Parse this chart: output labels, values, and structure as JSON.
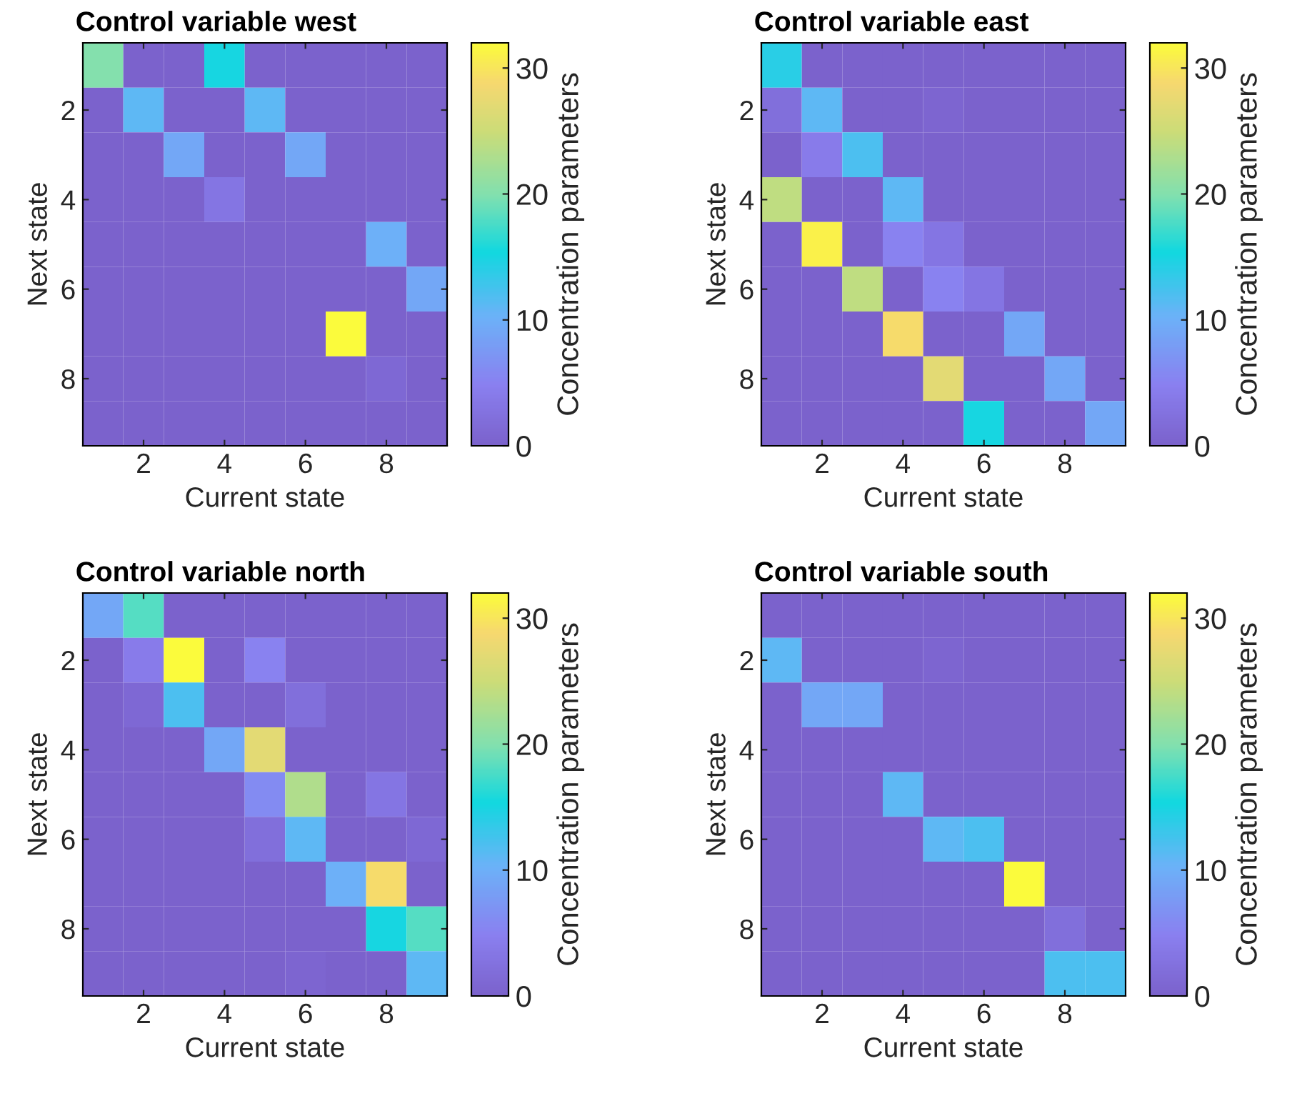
{
  "chart_data": [
    {
      "type": "heatmap",
      "title": "Control variable west",
      "xlabel": "Current state",
      "ylabel": "Next state",
      "clabel": "Concentration parameters",
      "categories": [
        null,
        "2",
        null,
        "4",
        null,
        "6",
        null,
        "8",
        null
      ],
      "y_categories": [
        null,
        "2",
        null,
        "4",
        null,
        "6",
        null,
        "8",
        null
      ],
      "cells": [
        [
          20,
          0,
          0,
          15,
          0,
          0,
          0,
          0,
          0
        ],
        [
          0,
          11,
          0,
          0,
          11,
          0,
          0,
          0,
          0
        ],
        [
          0,
          0,
          9,
          0,
          0,
          9,
          0,
          0,
          0
        ],
        [
          0,
          0,
          0,
          3,
          0,
          0,
          0,
          0,
          0
        ],
        [
          0,
          0,
          0,
          0,
          0,
          0,
          0,
          10,
          0
        ],
        [
          0,
          0,
          0,
          0,
          0,
          0,
          0,
          0,
          9
        ],
        [
          0,
          0,
          0,
          0,
          0,
          0,
          32,
          0,
          0
        ],
        [
          0,
          0,
          0,
          0,
          0,
          0,
          0,
          1,
          0
        ],
        [
          0,
          0,
          0,
          0,
          0,
          0,
          0,
          0,
          0
        ]
      ],
      "clim": [
        0,
        32
      ],
      "cticks": [
        0,
        10,
        20,
        30
      ]
    },
    {
      "type": "heatmap",
      "title": "Control variable east",
      "xlabel": "Current state",
      "ylabel": "Next state",
      "clabel": "Concentration parameters",
      "categories": [
        null,
        "2",
        null,
        "4",
        null,
        "6",
        null,
        "8",
        null
      ],
      "y_categories": [
        null,
        "2",
        null,
        "4",
        null,
        "6",
        null,
        "8",
        null
      ],
      "cells": [
        [
          14,
          0,
          0,
          0,
          0,
          0,
          0,
          0,
          0
        ],
        [
          2,
          11,
          0,
          0,
          0.5,
          0,
          0,
          0,
          0
        ],
        [
          0,
          4,
          12,
          0,
          0,
          0,
          0,
          0,
          0
        ],
        [
          24,
          0,
          0,
          11,
          0,
          0,
          0,
          0,
          0
        ],
        [
          0,
          31,
          0,
          5,
          3,
          0,
          0,
          0,
          0
        ],
        [
          0,
          0,
          24,
          0,
          5,
          3,
          0,
          0,
          0
        ],
        [
          0,
          0,
          0,
          29,
          0,
          0,
          9,
          0,
          0
        ],
        [
          0,
          0,
          0,
          0,
          27,
          0,
          0,
          9,
          0
        ],
        [
          0,
          0,
          0,
          0,
          0,
          15,
          0,
          0,
          9
        ]
      ],
      "clim": [
        0,
        32
      ],
      "cticks": [
        0,
        10,
        20,
        30
      ]
    },
    {
      "type": "heatmap",
      "title": "Control variable north",
      "xlabel": "Current state",
      "ylabel": "Next state",
      "clabel": "Concentration parameters",
      "categories": [
        null,
        "2",
        null,
        "4",
        null,
        "6",
        null,
        "8",
        null
      ],
      "y_categories": [
        null,
        "2",
        null,
        "4",
        null,
        "6",
        null,
        "8",
        null
      ],
      "cells": [
        [
          9,
          18,
          0,
          0,
          0,
          0,
          0,
          0,
          0
        ],
        [
          0,
          4,
          32,
          0,
          5,
          0,
          0,
          0,
          0
        ],
        [
          0,
          1,
          12,
          0,
          0,
          2,
          0,
          0,
          0
        ],
        [
          0,
          0,
          0,
          9,
          27,
          0,
          0,
          0,
          0
        ],
        [
          0,
          0,
          0,
          0,
          6,
          23,
          0,
          3,
          0
        ],
        [
          0,
          0,
          0,
          0,
          2,
          11,
          0,
          0,
          1
        ],
        [
          0,
          0,
          0,
          0,
          0,
          0,
          10,
          29,
          0
        ],
        [
          0,
          0,
          0,
          0,
          0,
          0,
          0,
          15,
          18
        ],
        [
          0,
          0,
          0,
          0,
          0,
          0.5,
          0,
          0,
          11
        ]
      ],
      "clim": [
        0,
        32
      ],
      "cticks": [
        0,
        10,
        20,
        30
      ]
    },
    {
      "type": "heatmap",
      "title": "Control variable south",
      "xlabel": "Current state",
      "ylabel": "Next state",
      "clabel": "Concentration parameters",
      "categories": [
        null,
        "2",
        null,
        "4",
        null,
        "6",
        null,
        "8",
        null
      ],
      "y_categories": [
        null,
        "2",
        null,
        "4",
        null,
        "6",
        null,
        "8",
        null
      ],
      "cells": [
        [
          0,
          0,
          0,
          0,
          0,
          0,
          0,
          0,
          0
        ],
        [
          11,
          0,
          0,
          0,
          0.5,
          0,
          0,
          0,
          0
        ],
        [
          0,
          9,
          9,
          0,
          0,
          0,
          0,
          0,
          0
        ],
        [
          0,
          0,
          0,
          0,
          0,
          0,
          0,
          0,
          0
        ],
        [
          0,
          0,
          0,
          11,
          0,
          0,
          0,
          0,
          0
        ],
        [
          0,
          0,
          0,
          0,
          11,
          12,
          0,
          0,
          0
        ],
        [
          0,
          0,
          0,
          0,
          0,
          0,
          32,
          0,
          0
        ],
        [
          0,
          0,
          0,
          0,
          0,
          0,
          0,
          2,
          0
        ],
        [
          0,
          0,
          0,
          0,
          0,
          0,
          0,
          12,
          12
        ]
      ],
      "clim": [
        0,
        32
      ],
      "cticks": [
        0,
        10,
        20,
        30
      ]
    }
  ]
}
